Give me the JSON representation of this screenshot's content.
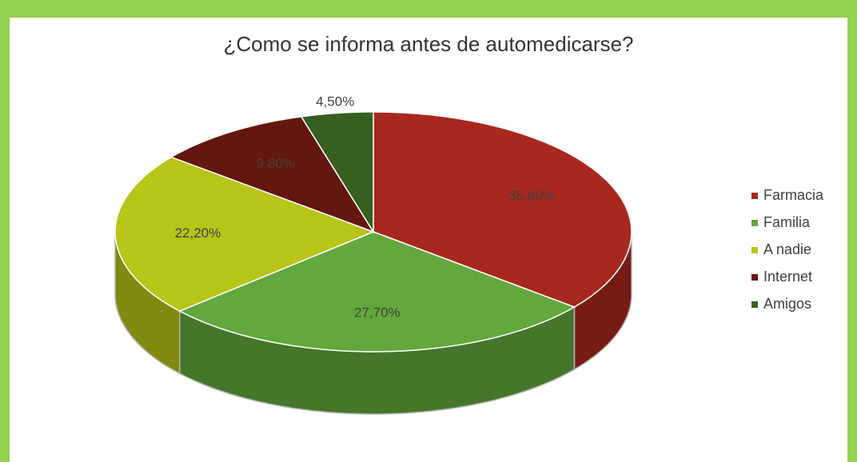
{
  "chart_data": {
    "type": "pie",
    "title": "¿Como se informa antes de automedicarse?",
    "categories": [
      "Farmacia",
      "Familia",
      "A nadie",
      "Internet",
      "Amigos"
    ],
    "values": [
      35.8,
      27.7,
      22.2,
      9.8,
      4.5
    ],
    "value_labels": [
      "35,80%",
      "27,70%",
      "22,20%",
      "9,80%",
      "4,50%"
    ],
    "colors": [
      "#a8281e",
      "#62a83c",
      "#b8c418",
      "#64170f",
      "#375f20"
    ],
    "legend": "right"
  }
}
